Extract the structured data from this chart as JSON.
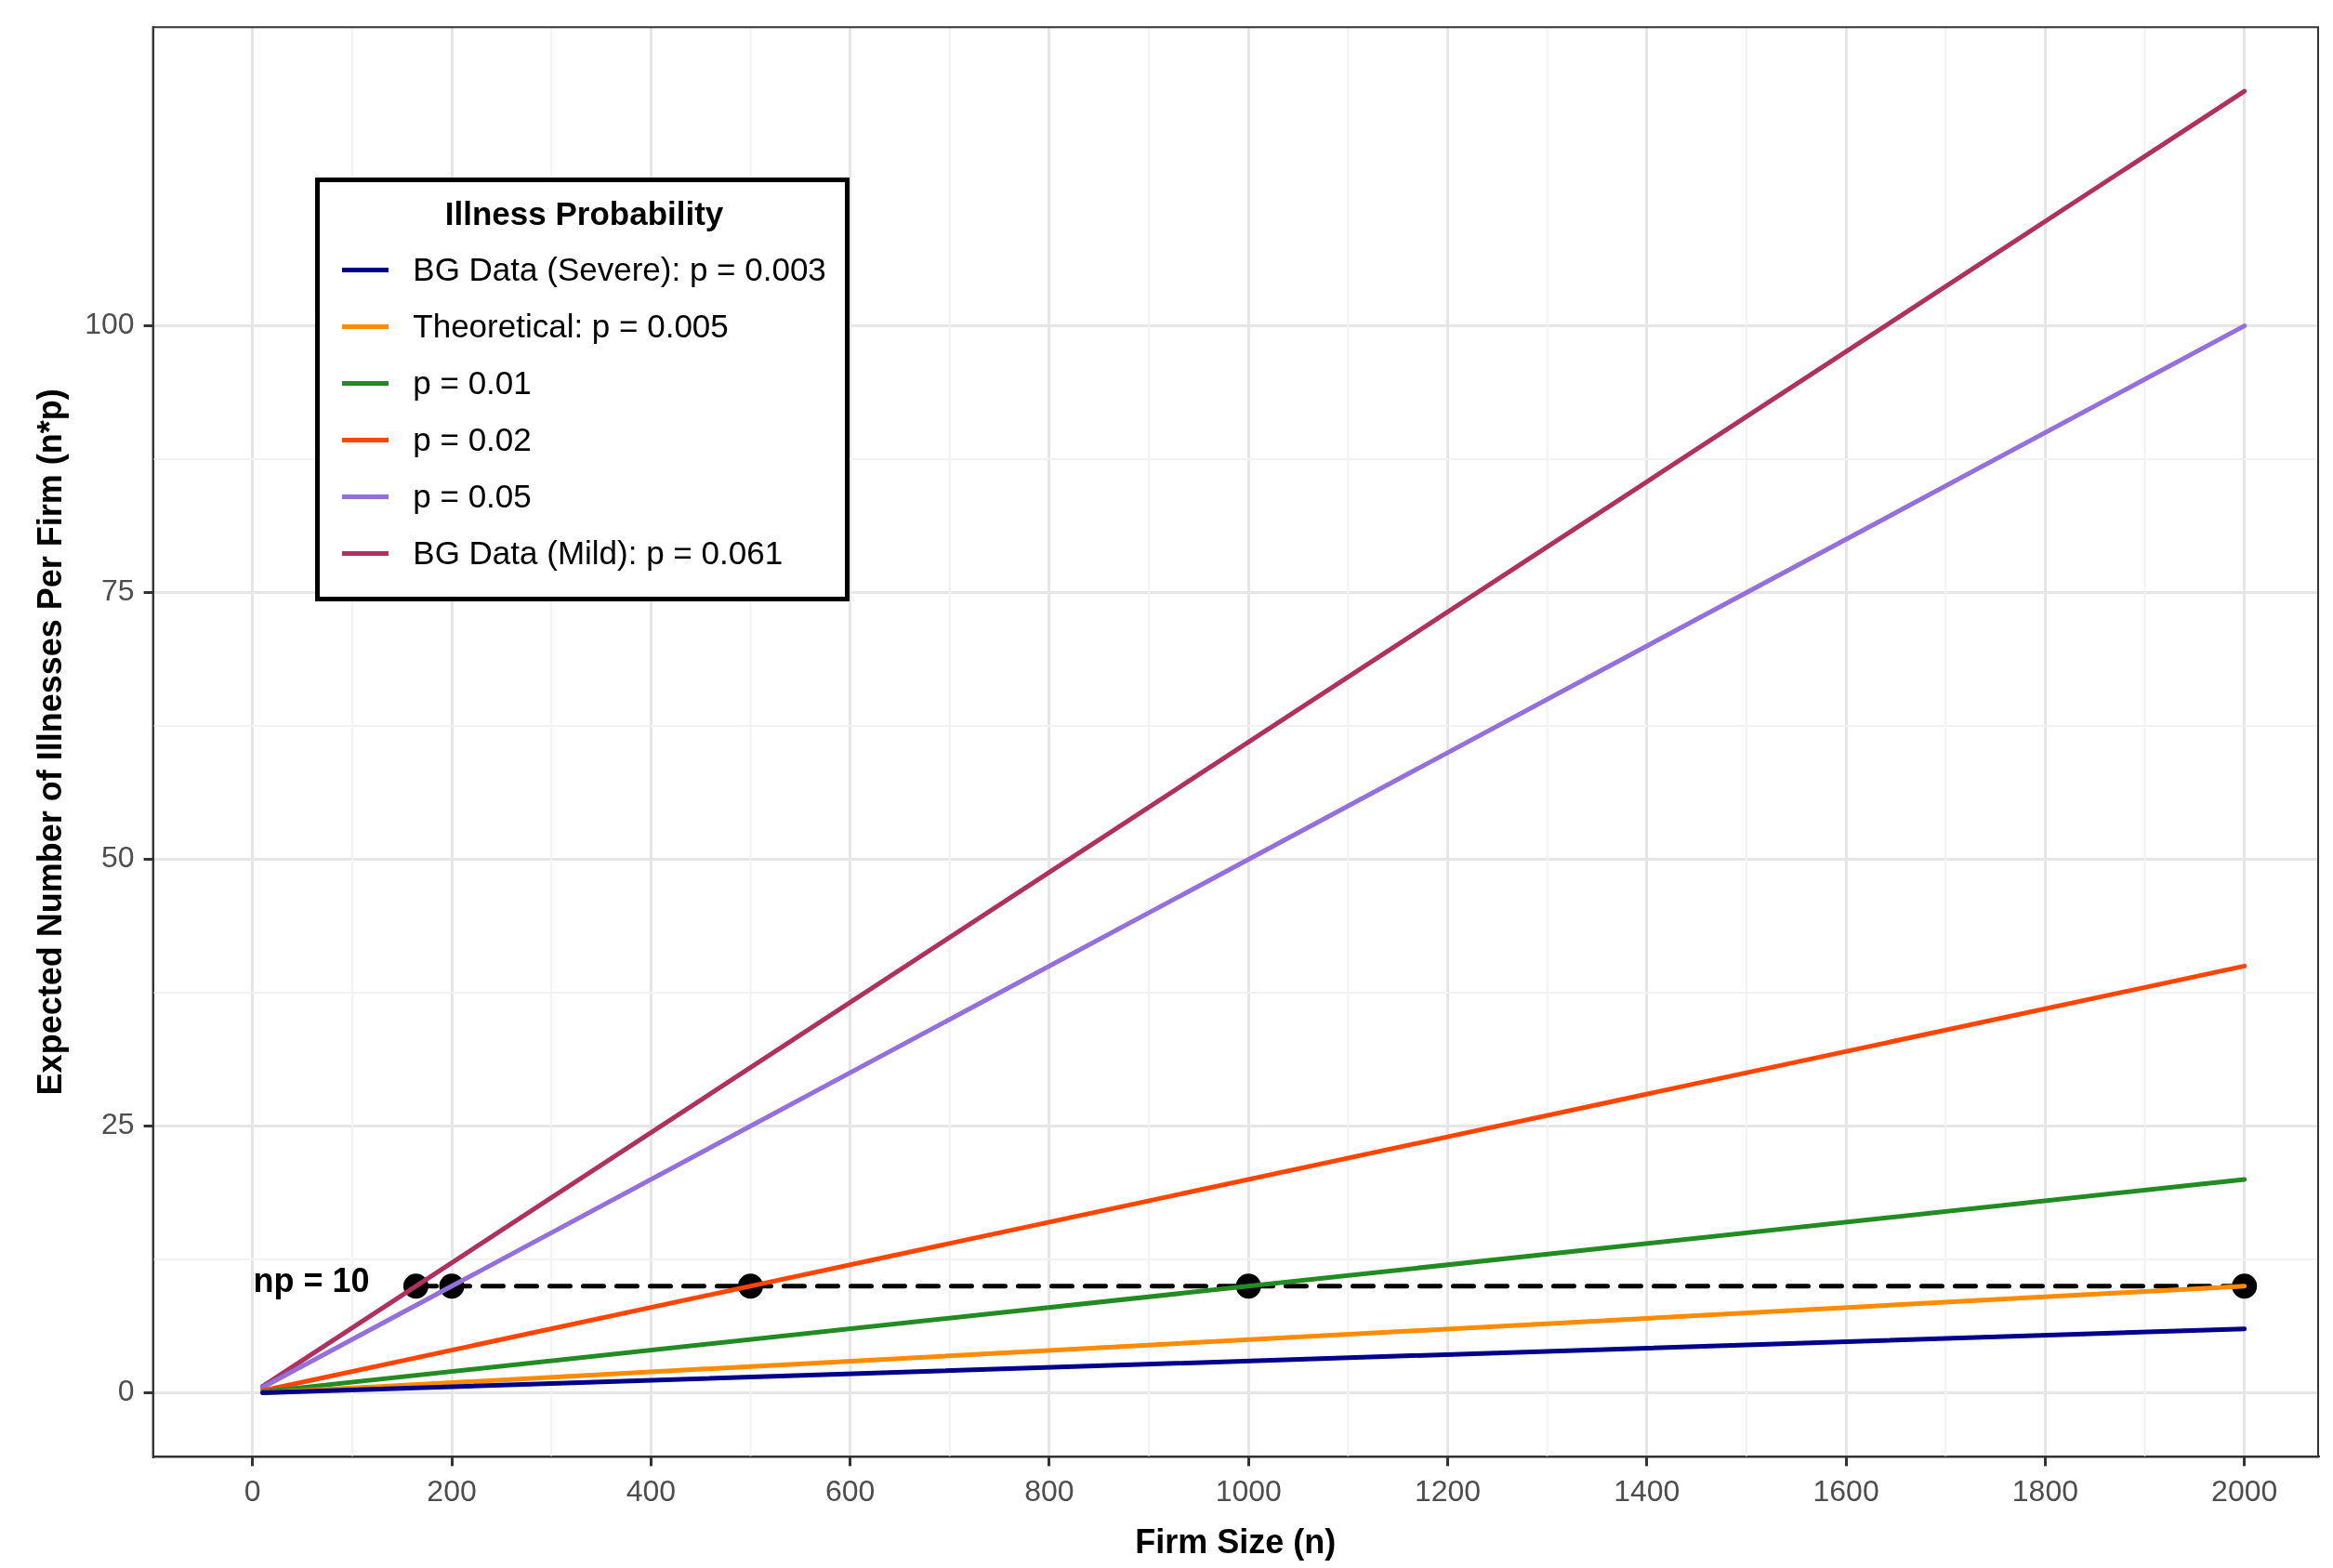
{
  "chart_data": {
    "type": "line",
    "xlabel": "Firm Size (n)",
    "ylabel": "Expected Number of Illnesses Per Firm (n*p)",
    "legend_title": "Illness Probability",
    "xlim": [
      -100,
      2074
    ],
    "xticks": [
      0,
      200,
      400,
      600,
      800,
      1000,
      1200,
      1400,
      1600,
      1800,
      2000
    ],
    "ylim": [
      -6,
      128
    ],
    "yticks": [
      0,
      25,
      50,
      75,
      100
    ],
    "series": [
      {
        "name": "BG Data (Severe): p = 0.003",
        "color": "#00008b",
        "x": [
          10,
          2000
        ],
        "values": [
          0,
          6
        ]
      },
      {
        "name": "Theoretical: p = 0.005",
        "color": "#ff8c00",
        "x": [
          10,
          2000
        ],
        "values": [
          0,
          10
        ]
      },
      {
        "name": "p = 0.01",
        "color": "#228b22",
        "x": [
          10,
          2000
        ],
        "values": [
          0.1,
          20
        ]
      },
      {
        "name": "p = 0.02",
        "color": "#ff4500",
        "x": [
          10,
          2000
        ],
        "values": [
          0.2,
          40
        ]
      },
      {
        "name": "p = 0.05",
        "color": "#9370db",
        "x": [
          10,
          2000
        ],
        "values": [
          0.5,
          100
        ]
      },
      {
        "name": "BG Data (Mild): p = 0.061",
        "color": "#b03060",
        "x": [
          10,
          2000
        ],
        "values": [
          0.6,
          122
        ]
      },
      {
        "color": "#000000",
        "line_style": "dashed",
        "marker": "circle",
        "x": [
          164,
          200,
          500,
          1000,
          2000
        ],
        "values": [
          10,
          10,
          10,
          10,
          10
        ]
      }
    ],
    "annotations": [
      {
        "text": "np = 10",
        "x": 164,
        "y": 10
      }
    ],
    "grid": true,
    "legend": "top left",
    "marker": "none",
    "line_style": "solid"
  }
}
